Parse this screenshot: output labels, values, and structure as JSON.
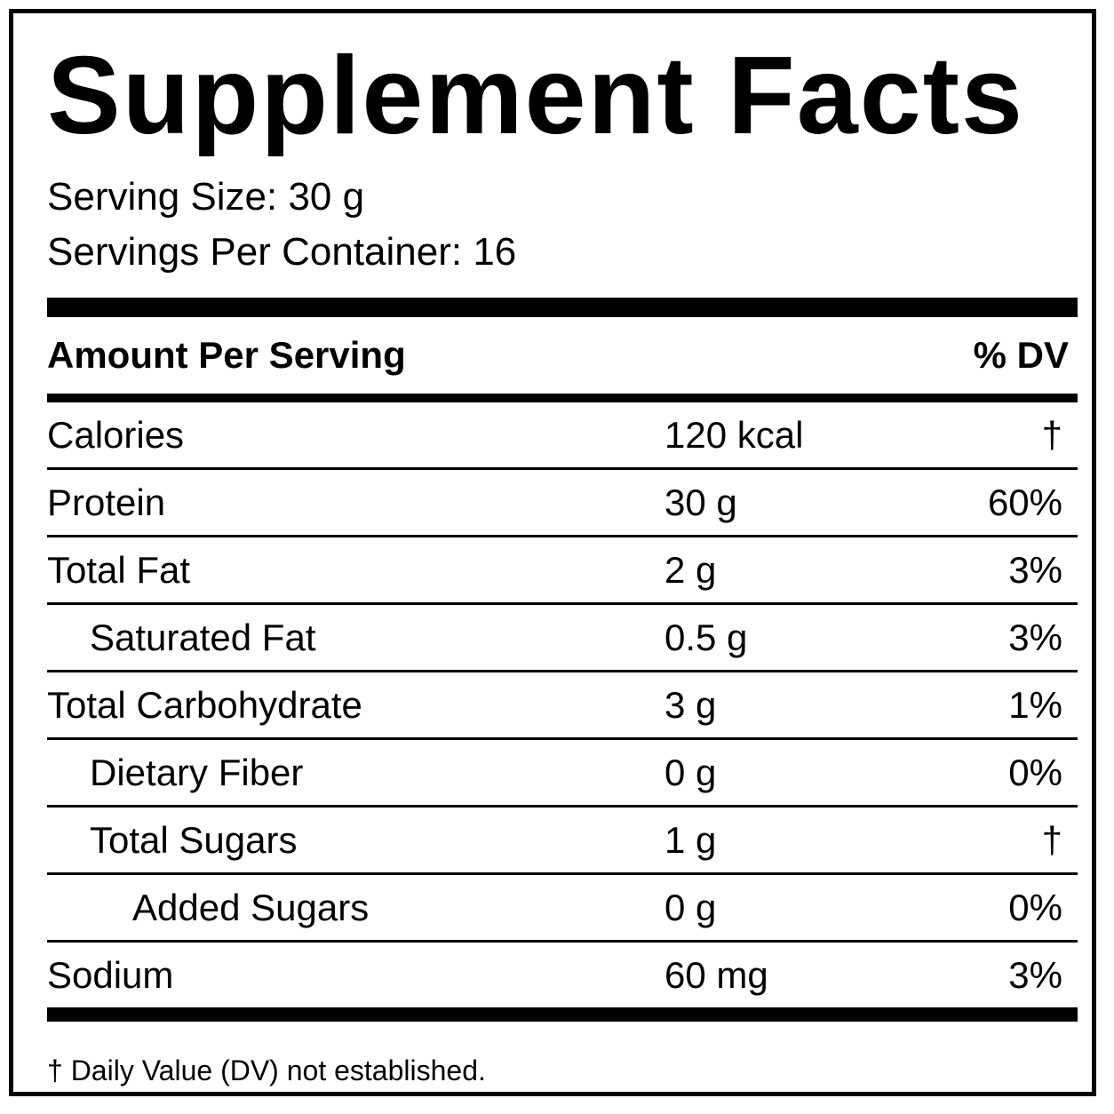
{
  "header": {
    "title": "Supplement Facts",
    "serving_size": "Serving Size: 30 g",
    "servings_per_container": "Servings Per Container: 16"
  },
  "table": {
    "columns": [
      "Amount Per Serving",
      "% DV"
    ],
    "rows": [
      {
        "name": "Calories",
        "amount": "120 kcal",
        "dv": "†",
        "indent": 0
      },
      {
        "name": "Protein",
        "amount": "30 g",
        "dv": "60%",
        "indent": 0
      },
      {
        "name": "Total Fat",
        "amount": "2 g",
        "dv": "3%",
        "indent": 0
      },
      {
        "name": "Saturated Fat",
        "amount": "0.5 g",
        "dv": "3%",
        "indent": 1
      },
      {
        "name": "Total Carbohydrate",
        "amount": "3 g",
        "dv": "1%",
        "indent": 0
      },
      {
        "name": "Dietary Fiber",
        "amount": "0 g",
        "dv": "0%",
        "indent": 1
      },
      {
        "name": "Total Sugars",
        "amount": "1 g",
        "dv": "†",
        "indent": 1
      },
      {
        "name": "Added Sugars",
        "amount": "0 g",
        "dv": "0%",
        "indent": 2
      },
      {
        "name": "Sodium",
        "amount": "60 mg",
        "dv": "3%",
        "indent": 0
      }
    ]
  },
  "footnote": "† Daily Value (DV) not established."
}
